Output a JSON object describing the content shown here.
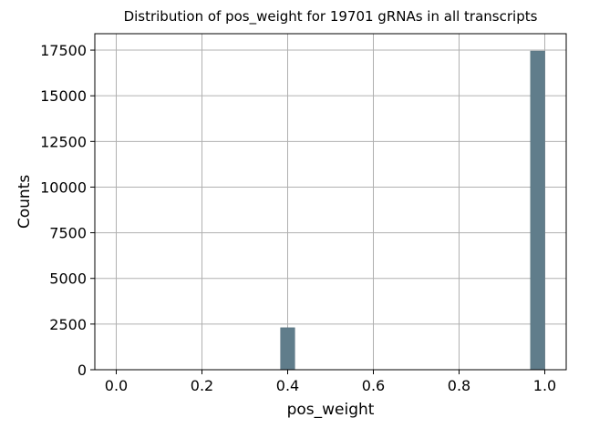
{
  "chart_data": {
    "type": "bar",
    "title": "Distribution of pos_weight for 19701 gRNAs in all transcripts",
    "xlabel": "pos_weight",
    "ylabel": "Counts",
    "xlim": [
      -0.05,
      1.05
    ],
    "ylim": [
      0,
      18400
    ],
    "grid": true,
    "bar_color": "#607d8b",
    "grid_color": "#b0b0b0",
    "x_ticks": [
      "0.0",
      "0.2",
      "0.4",
      "0.6",
      "0.8",
      "1.0"
    ],
    "y_ticks": [
      "0",
      "2500",
      "5000",
      "7500",
      "10000",
      "12500",
      "15000",
      "17500"
    ],
    "x": [
      0.0,
      0.4,
      1.0
    ],
    "values": [
      0,
      2300,
      17450
    ],
    "bin_width": 0.0333
  }
}
